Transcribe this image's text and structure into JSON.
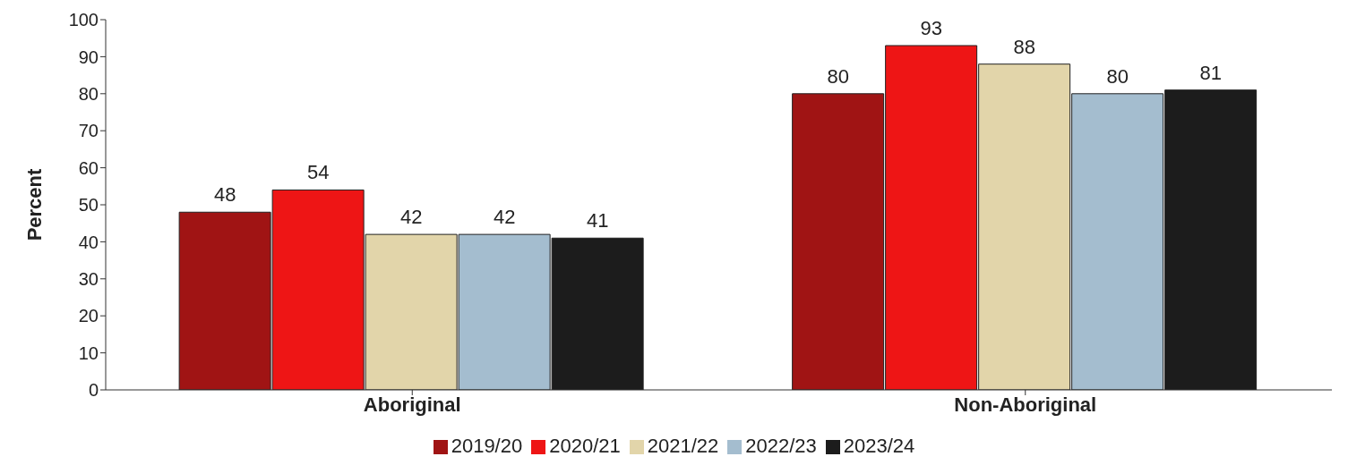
{
  "chart_data": {
    "type": "bar",
    "categories": [
      "Aboriginal",
      "Non-Aboriginal"
    ],
    "series": [
      {
        "name": "2019/20",
        "color": "#a01414",
        "values": [
          48,
          80
        ]
      },
      {
        "name": "2020/21",
        "color": "#ee1515",
        "values": [
          54,
          93
        ]
      },
      {
        "name": "2021/22",
        "color": "#e2d5aa",
        "values": [
          42,
          88
        ]
      },
      {
        "name": "2022/23",
        "color": "#a4bdcf",
        "values": [
          42,
          80
        ]
      },
      {
        "name": "2023/24",
        "color": "#1c1c1c",
        "values": [
          41,
          81
        ]
      }
    ],
    "ylabel": "Percent",
    "ylim": [
      0,
      100
    ],
    "yticks": [
      0,
      10,
      20,
      30,
      40,
      50,
      60,
      70,
      80,
      90,
      100
    ],
    "grid": false,
    "legend": "bottom",
    "data_labels": true
  }
}
